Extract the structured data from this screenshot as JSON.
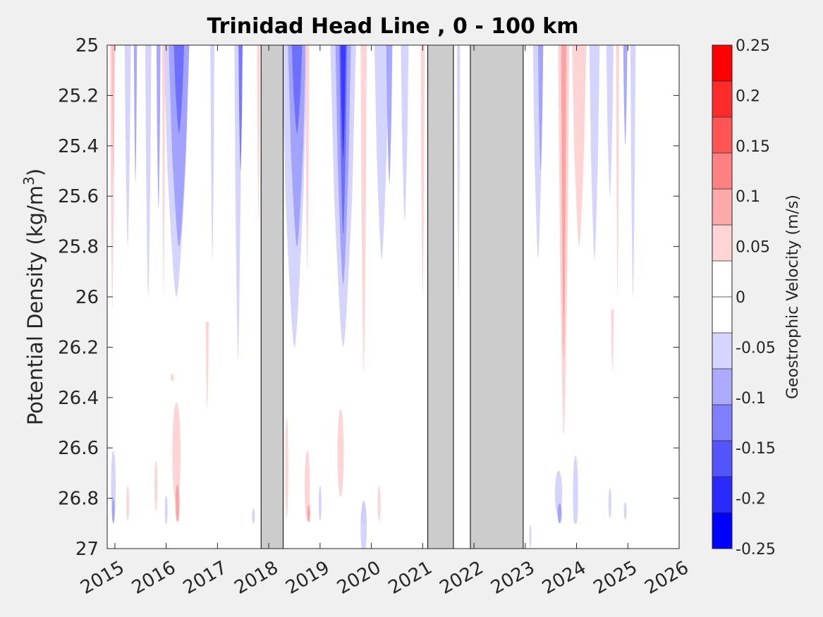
{
  "chart_data": {
    "type": "heatmap",
    "title": "Trinidad Head Line , 0 - 100 km",
    "xlabel": "",
    "ylabel": "Potential Density (kg/m³)",
    "ylabel_parts": {
      "main": "Potential Density (kg/m",
      "sup": "3",
      "tail": ")"
    },
    "xlim": [
      2014.85,
      2026.0
    ],
    "ylim": [
      25,
      27
    ],
    "y_reversed": true,
    "x_ticks": [
      "2015",
      "2016",
      "2017",
      "2018",
      "2019",
      "2020",
      "2021",
      "2022",
      "2023",
      "2024",
      "2025",
      "2026"
    ],
    "y_ticks": [
      "25",
      "25.2",
      "25.4",
      "25.6",
      "25.8",
      "26",
      "26.2",
      "26.4",
      "26.6",
      "26.8",
      "27"
    ],
    "colorbar": {
      "label": "Geostrophic Velocity (m/s)",
      "range": [
        -0.25,
        0.25
      ],
      "ticks": [
        "0.25",
        "0.2",
        "0.15",
        "0.1",
        "0.05",
        "0",
        "-0.05",
        "-0.1",
        "-0.15",
        "-0.2",
        "-0.25"
      ],
      "colors": [
        "#ff0000",
        "#ff2a2a",
        "#ff5555",
        "#ff8080",
        "#ffaaaa",
        "#ffd5d5",
        "#ffffff",
        "#ffffff",
        "#d5d5ff",
        "#aaaaff",
        "#8080ff",
        "#5555ff",
        "#2a2aff",
        "#0000ff"
      ]
    },
    "data_gaps": [
      {
        "start": 2017.85,
        "end": 2018.28
      },
      {
        "start": 2021.1,
        "end": 2021.6
      },
      {
        "start": 2021.93,
        "end": 2022.96
      }
    ],
    "features": [
      {
        "x": 2014.95,
        "y0": 25.0,
        "y1": 26.05,
        "w": 0.09,
        "v": 0.05
      },
      {
        "x": 2014.97,
        "y0": 25.0,
        "y1": 25.55,
        "w": 0.05,
        "v": 0.07
      },
      {
        "x": 2015.25,
        "y0": 25.0,
        "y1": 25.8,
        "w": 0.12,
        "v": -0.05
      },
      {
        "x": 2015.4,
        "y0": 25.0,
        "y1": 25.55,
        "w": 0.06,
        "v": -0.1
      },
      {
        "x": 2015.65,
        "y0": 25.0,
        "y1": 26.0,
        "w": 0.12,
        "v": -0.05
      },
      {
        "x": 2015.85,
        "y0": 25.0,
        "y1": 25.65,
        "w": 0.08,
        "v": -0.1
      },
      {
        "x": 2016.2,
        "y0": 25.0,
        "y1": 26.0,
        "w": 0.5,
        "v": -0.05
      },
      {
        "x": 2016.25,
        "y0": 25.0,
        "y1": 25.8,
        "w": 0.4,
        "v": -0.1
      },
      {
        "x": 2016.25,
        "y0": 25.0,
        "y1": 25.35,
        "w": 0.2,
        "v": -0.15
      },
      {
        "x": 2015.95,
        "y0": 25.0,
        "y1": 26.0,
        "w": 0.06,
        "v": 0.05
      },
      {
        "x": 2016.9,
        "y0": 25.0,
        "y1": 25.85,
        "w": 0.08,
        "v": -0.05
      },
      {
        "x": 2017.4,
        "y0": 25.0,
        "y1": 26.25,
        "w": 0.14,
        "v": -0.05
      },
      {
        "x": 2017.45,
        "y0": 25.0,
        "y1": 25.5,
        "w": 0.08,
        "v": -0.15
      },
      {
        "x": 2017.8,
        "y0": 25.0,
        "y1": 25.7,
        "w": 0.05,
        "v": 0.05
      },
      {
        "x": 2016.8,
        "y0": 26.1,
        "y1": 26.45,
        "w": 0.06,
        "v": 0.05
      },
      {
        "x": 2018.5,
        "y0": 25.0,
        "y1": 26.2,
        "w": 0.5,
        "v": -0.05
      },
      {
        "x": 2018.55,
        "y0": 25.0,
        "y1": 25.8,
        "w": 0.35,
        "v": -0.1
      },
      {
        "x": 2018.55,
        "y0": 25.0,
        "y1": 25.35,
        "w": 0.2,
        "v": -0.15
      },
      {
        "x": 2018.75,
        "y0": 25.0,
        "y1": 25.9,
        "w": 0.08,
        "v": 0.05
      },
      {
        "x": 2019.45,
        "y0": 25.0,
        "y1": 26.2,
        "w": 0.5,
        "v": -0.05
      },
      {
        "x": 2019.45,
        "y0": 25.0,
        "y1": 25.95,
        "w": 0.3,
        "v": -0.1
      },
      {
        "x": 2019.45,
        "y0": 25.0,
        "y1": 25.75,
        "w": 0.15,
        "v": -0.15
      },
      {
        "x": 2019.45,
        "y0": 25.0,
        "y1": 25.45,
        "w": 0.1,
        "v": -0.2
      },
      {
        "x": 2019.85,
        "y0": 25.0,
        "y1": 26.3,
        "w": 0.12,
        "v": 0.05
      },
      {
        "x": 2020.2,
        "y0": 25.0,
        "y1": 25.85,
        "w": 0.28,
        "v": -0.05
      },
      {
        "x": 2020.35,
        "y0": 25.0,
        "y1": 25.55,
        "w": 0.12,
        "v": -0.1
      },
      {
        "x": 2020.65,
        "y0": 25.0,
        "y1": 25.7,
        "w": 0.15,
        "v": -0.05
      },
      {
        "x": 2021.0,
        "y0": 25.0,
        "y1": 26.0,
        "w": 0.08,
        "v": 0.05
      },
      {
        "x": 2021.7,
        "y0": 25.0,
        "y1": 26.0,
        "w": 0.06,
        "v": -0.05
      },
      {
        "x": 2023.25,
        "y0": 25.0,
        "y1": 25.85,
        "w": 0.2,
        "v": -0.05
      },
      {
        "x": 2023.3,
        "y0": 25.0,
        "y1": 25.5,
        "w": 0.1,
        "v": -0.1
      },
      {
        "x": 2023.75,
        "y0": 25.0,
        "y1": 26.55,
        "w": 0.22,
        "v": 0.05
      },
      {
        "x": 2023.75,
        "y0": 25.0,
        "y1": 26.25,
        "w": 0.1,
        "v": 0.1
      },
      {
        "x": 2024.05,
        "y0": 25.0,
        "y1": 25.8,
        "w": 0.28,
        "v": 0.05
      },
      {
        "x": 2024.35,
        "y0": 25.0,
        "y1": 25.85,
        "w": 0.2,
        "v": -0.05
      },
      {
        "x": 2024.65,
        "y0": 25.0,
        "y1": 25.6,
        "w": 0.14,
        "v": -0.05
      },
      {
        "x": 2024.8,
        "y0": 25.0,
        "y1": 26.0,
        "w": 0.06,
        "v": 0.05
      },
      {
        "x": 2024.95,
        "y0": 25.0,
        "y1": 25.4,
        "w": 0.08,
        "v": -0.1
      },
      {
        "x": 2025.1,
        "y0": 25.0,
        "y1": 26.0,
        "w": 0.1,
        "v": -0.05
      },
      {
        "x": 2024.7,
        "y0": 26.05,
        "y1": 26.3,
        "w": 0.05,
        "v": 0.05
      }
    ],
    "deep_features": [
      {
        "x": 2014.97,
        "yc": 26.75,
        "h": 0.28,
        "w": 0.09,
        "v": -0.05
      },
      {
        "x": 2014.97,
        "yc": 26.85,
        "h": 0.1,
        "w": 0.05,
        "v": -0.1
      },
      {
        "x": 2015.25,
        "yc": 26.82,
        "h": 0.14,
        "w": 0.05,
        "v": 0.05
      },
      {
        "x": 2015.8,
        "yc": 26.75,
        "h": 0.2,
        "w": 0.05,
        "v": 0.05
      },
      {
        "x": 2016.0,
        "yc": 26.85,
        "h": 0.12,
        "w": 0.05,
        "v": -0.05
      },
      {
        "x": 2016.2,
        "yc": 26.62,
        "h": 0.4,
        "w": 0.16,
        "v": 0.05
      },
      {
        "x": 2016.22,
        "yc": 26.82,
        "h": 0.15,
        "w": 0.08,
        "v": 0.1
      },
      {
        "x": 2016.12,
        "yc": 26.32,
        "h": 0.03,
        "w": 0.02,
        "v": 0.05
      },
      {
        "x": 2017.7,
        "yc": 26.87,
        "h": 0.06,
        "w": 0.03,
        "v": -0.05
      },
      {
        "x": 2018.35,
        "yc": 26.68,
        "h": 0.4,
        "w": 0.06,
        "v": 0.05
      },
      {
        "x": 2018.75,
        "yc": 26.75,
        "h": 0.28,
        "w": 0.1,
        "v": 0.05
      },
      {
        "x": 2018.78,
        "yc": 26.86,
        "h": 0.07,
        "w": 0.05,
        "v": 0.1
      },
      {
        "x": 2019.0,
        "yc": 26.82,
        "h": 0.14,
        "w": 0.05,
        "v": -0.05
      },
      {
        "x": 2019.4,
        "yc": 26.62,
        "h": 0.35,
        "w": 0.12,
        "v": 0.05
      },
      {
        "x": 2019.85,
        "yc": 26.92,
        "h": 0.22,
        "w": 0.12,
        "v": -0.05
      },
      {
        "x": 2020.15,
        "yc": 26.82,
        "h": 0.14,
        "w": 0.04,
        "v": 0.05
      },
      {
        "x": 2023.65,
        "yc": 26.78,
        "h": 0.18,
        "w": 0.14,
        "v": -0.05
      },
      {
        "x": 2023.67,
        "yc": 26.86,
        "h": 0.08,
        "w": 0.08,
        "v": -0.1
      },
      {
        "x": 2023.98,
        "yc": 26.78,
        "h": 0.3,
        "w": 0.1,
        "v": -0.05
      },
      {
        "x": 2024.65,
        "yc": 26.82,
        "h": 0.12,
        "w": 0.05,
        "v": -0.05
      },
      {
        "x": 2024.95,
        "yc": 26.85,
        "h": 0.07,
        "w": 0.02,
        "v": -0.05
      },
      {
        "x": 2023.1,
        "yc": 26.95,
        "h": 0.09,
        "w": 0.03,
        "v": -0.05
      }
    ],
    "bottom_band_y": 26.9
  }
}
